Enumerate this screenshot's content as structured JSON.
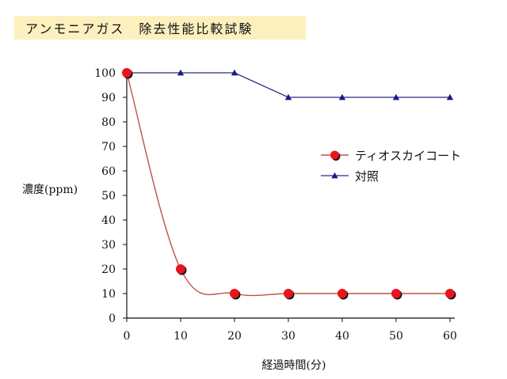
{
  "title": "アンモニアガス　除去性能比較試験",
  "colors": {
    "title_bg": "#fdf0bf",
    "series1_line": "#c0504d",
    "series1_marker": "#e8141e",
    "series2_line": "#2b2b7e",
    "series2_marker": "#1a1a8c",
    "axis": "#111111"
  },
  "chart_data": {
    "type": "line",
    "title": "アンモニアガス　除去性能比較試験",
    "xlabel": "経過時間(分)",
    "ylabel": "濃度(ppm)",
    "xlim": [
      0,
      60
    ],
    "ylim": [
      0,
      100
    ],
    "x_ticks": [
      "0",
      "10",
      "20",
      "30",
      "40",
      "50",
      "60"
    ],
    "y_ticks": [
      "0",
      "10",
      "20",
      "30",
      "40",
      "50",
      "60",
      "70",
      "80",
      "90",
      "100"
    ],
    "grid": false,
    "legend_position": "right",
    "series": [
      {
        "name": "ティオスカイコート",
        "marker": "circle",
        "smooth": true,
        "x": [
          0,
          10,
          20,
          30,
          40,
          50,
          60
        ],
        "values": [
          100,
          20,
          10,
          10,
          10,
          10,
          10
        ]
      },
      {
        "name": "対照",
        "marker": "triangle",
        "smooth": false,
        "x": [
          0,
          10,
          20,
          30,
          40,
          50,
          60
        ],
        "values": [
          100,
          100,
          100,
          90,
          90,
          90,
          90
        ]
      }
    ]
  }
}
